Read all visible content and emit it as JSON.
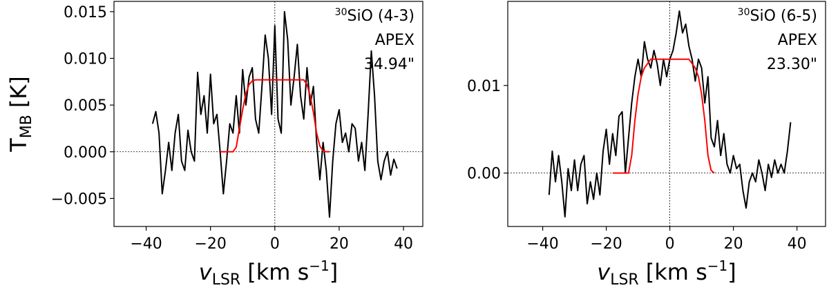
{
  "chart_data": [
    {
      "type": "line",
      "ylabel": "T",
      "ylabel_sub": "MB",
      "ylabel_unit": "[K]",
      "xlabel": "v",
      "xlabel_sub": "LSR",
      "xlabel_unit": "[km s",
      "xlabel_sup": "−1",
      "xlabel_end": "]",
      "molecule_superscript": "30",
      "molecule": "SiO (4-3)",
      "telescope": "APEX",
      "beam": "34.94\"",
      "xlim": [
        -50,
        46
      ],
      "ylim": [
        -0.008,
        0.0161
      ],
      "xticks": [
        {
          "value": -40,
          "label": "−40"
        },
        {
          "value": -20,
          "label": "−20"
        },
        0,
        20,
        40
      ],
      "yticks": [
        {
          "value": -0.005,
          "label": "−0.005"
        },
        {
          "value": 0,
          "label": "0.000"
        },
        0.005,
        {
          "value": 0.01,
          "label": "0.010"
        },
        0.015
      ],
      "zero_lines": true,
      "x": [
        -38,
        -37,
        -36,
        -35,
        -34,
        -33,
        -32,
        -31,
        -30,
        -29,
        -28,
        -27,
        -26,
        -25,
        -24,
        -23,
        -22,
        -21,
        -20,
        -19,
        -18,
        -17,
        -16,
        -15,
        -14,
        -13,
        -12,
        -11,
        -10,
        -9,
        -8,
        -7,
        -6,
        -5,
        -4,
        -3,
        -2,
        -1,
        0,
        1,
        2,
        3,
        4,
        5,
        6,
        7,
        8,
        9,
        10,
        11,
        12,
        13,
        14,
        15,
        16,
        17,
        18,
        19,
        20,
        21,
        22,
        23,
        24,
        25,
        26,
        27,
        28,
        29,
        30,
        31,
        32,
        33,
        34,
        35,
        36,
        37,
        38
      ],
      "series": [
        {
          "color": "#000000",
          "values": [
            0.003,
            0.0043,
            0.002,
            -0.0045,
            -0.002,
            0.001,
            -0.002,
            0.002,
            0.004,
            -0.001,
            -0.002,
            0.0023,
            0,
            -0.001,
            0.0085,
            0.004,
            0.006,
            0.002,
            0.0083,
            0.003,
            0.004,
            0,
            -0.0045,
            -0.001,
            0.003,
            0.002,
            0.006,
            0.002,
            0.0088,
            0.005,
            0.008,
            0.009,
            0.0035,
            0.002,
            0.007,
            0.0125,
            0.01,
            0.004,
            0.0135,
            0.0035,
            0.002,
            0.015,
            0.012,
            0.005,
            0.008,
            0.0115,
            0.006,
            0.0035,
            0.009,
            0.005,
            0.007,
            0.001,
            -0.003,
            0.001,
            -0.002,
            -0.007,
            -0.001,
            0.003,
            0.0045,
            0.001,
            0.002,
            0,
            0.003,
            0.0025,
            -0.001,
            0.001,
            -0.002,
            0.004,
            0.0108,
            0.006,
            -0.001,
            -0.003,
            -0.001,
            0,
            -0.0025,
            -0.0008,
            -0.0018
          ]
        },
        {
          "color": "#ff0000",
          "values": [
            null,
            null,
            null,
            null,
            null,
            null,
            null,
            null,
            null,
            null,
            null,
            null,
            null,
            null,
            null,
            null,
            null,
            null,
            null,
            null,
            null,
            0,
            0,
            0,
            0,
            0,
            0.0005,
            0.0025,
            0.0045,
            0.0062,
            0.0072,
            0.0076,
            0.0077,
            0.0077,
            0.0077,
            0.0077,
            0.0077,
            0.0077,
            0.0077,
            0.0077,
            0.0077,
            0.0077,
            0.0077,
            0.0077,
            0.0077,
            0.0077,
            0.0077,
            0.0077,
            0.0072,
            0.006,
            0.0042,
            0.002,
            0.0006,
            0.0001,
            0,
            0,
            null,
            null,
            null,
            null,
            null,
            null,
            null,
            null,
            null,
            null,
            null,
            null,
            null,
            null,
            null,
            null,
            null,
            null,
            null,
            null,
            null
          ]
        }
      ]
    },
    {
      "type": "line",
      "xlabel": "v",
      "xlabel_sub": "LSR",
      "xlabel_unit": "[km s",
      "xlabel_sup": "−1",
      "xlabel_end": "]",
      "molecule_superscript": "30",
      "molecule": "SiO (6-5)",
      "telescope": "APEX",
      "beam": "23.30\"",
      "xlim": [
        -51,
        49
      ],
      "ylim": [
        -0.0061,
        0.0196
      ],
      "xticks": [
        {
          "value": -40,
          "label": "−40"
        },
        {
          "value": -20,
          "label": "−20"
        },
        0,
        20,
        40
      ],
      "yticks": [
        {
          "value": 0,
          "label": "0.00"
        },
        0.01
      ],
      "zero_lines": true,
      "x": [
        -38,
        -37,
        -36,
        -35,
        -34,
        -33,
        -32,
        -31,
        -30,
        -29,
        -28,
        -27,
        -26,
        -25,
        -24,
        -23,
        -22,
        -21,
        -20,
        -19,
        -18,
        -17,
        -16,
        -15,
        -14,
        -13,
        -12,
        -11,
        -10,
        -9,
        -8,
        -7,
        -6,
        -5,
        -4,
        -3,
        -2,
        -1,
        0,
        1,
        2,
        3,
        4,
        5,
        6,
        7,
        8,
        9,
        10,
        11,
        12,
        13,
        14,
        15,
        16,
        17,
        18,
        19,
        20,
        21,
        22,
        23,
        24,
        25,
        26,
        27,
        28,
        29,
        30,
        31,
        32,
        33,
        34,
        35,
        36,
        37,
        38
      ],
      "series": [
        {
          "color": "#000000",
          "values": [
            -0.0025,
            0.0025,
            -0.001,
            0.002,
            -0.001,
            -0.005,
            0.0005,
            -0.002,
            0.0015,
            -0.002,
            0.001,
            0.002,
            -0.0035,
            -0.001,
            -0.003,
            0,
            -0.0025,
            0.0025,
            0.005,
            0.001,
            0.0045,
            0.002,
            0.0065,
            0.007,
            0,
            0.004,
            0.008,
            0.011,
            0.013,
            0.011,
            0.015,
            0.013,
            0.012,
            0.014,
            0.0125,
            0.01,
            0.013,
            0.011,
            0.013,
            0.014,
            0.016,
            0.0185,
            0.016,
            0.017,
            0.0145,
            0.013,
            0.0105,
            0.013,
            0.012,
            0.008,
            0.011,
            0.004,
            0.003,
            0.006,
            0.002,
            0.0045,
            0.001,
            0,
            0.002,
            0.0005,
            0.001,
            -0.002,
            -0.004,
            -0.001,
            0,
            -0.001,
            0.0015,
            0,
            -0.002,
            0.001,
            -0.0005,
            0.0015,
            0,
            0.001,
            0,
            0.0025,
            0.0058
          ]
        },
        {
          "color": "#ff0000",
          "values": [
            null,
            null,
            null,
            null,
            null,
            null,
            null,
            null,
            null,
            null,
            null,
            null,
            null,
            null,
            null,
            null,
            null,
            null,
            null,
            null,
            0,
            0,
            0,
            0,
            0,
            0,
            0.002,
            0.006,
            0.009,
            0.011,
            0.012,
            0.0125,
            0.013,
            0.013,
            0.013,
            0.013,
            0.013,
            0.013,
            0.013,
            0.013,
            0.013,
            0.013,
            0.013,
            0.013,
            0.013,
            0.0125,
            0.012,
            0.011,
            0.009,
            0.006,
            0.002,
            0.0003,
            0,
            null,
            null,
            null,
            null,
            null,
            null,
            null,
            null,
            null,
            null,
            null,
            null,
            null,
            null,
            null,
            null,
            null,
            null,
            null,
            null,
            null,
            null,
            null,
            null
          ]
        }
      ]
    }
  ]
}
